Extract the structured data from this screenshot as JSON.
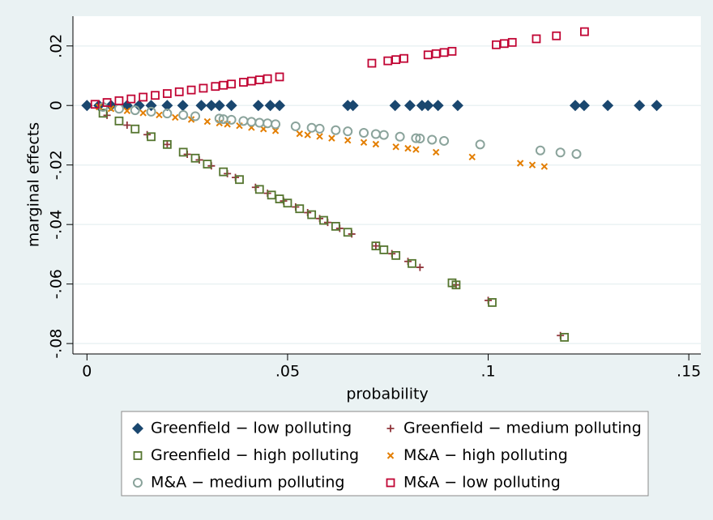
{
  "chart_data": {
    "type": "scatter",
    "xlabel": "probability",
    "ylabel": "marginal effects",
    "xlim": [
      -0.0035,
      0.153
    ],
    "ylim": [
      -0.0835,
      0.03
    ],
    "xticks": [
      0,
      {
        "value": 0.05,
        "label": ".05"
      },
      {
        "value": 0.1,
        "label": ".1"
      },
      {
        "value": 0.15,
        "label": ".15"
      }
    ],
    "yticks": [
      {
        "value": 0.02,
        "label": ".02"
      },
      0,
      {
        "value": -0.02,
        "label": "-.02"
      },
      {
        "value": -0.04,
        "label": "-.04"
      },
      {
        "value": -0.06,
        "label": "-.06"
      },
      {
        "value": -0.08,
        "label": "-.08"
      }
    ],
    "grid": true,
    "series": [
      {
        "name": "Greenfield − low polluting",
        "color": "#1a476f",
        "marker": "diamond",
        "x": [
          0,
          0.003,
          0.006,
          0.01,
          0.013,
          0.016,
          0.02,
          0.0239,
          0.0285,
          0.031,
          0.033,
          0.036,
          0.0427,
          0.0457,
          0.048,
          0.065,
          0.0663,
          0.0768,
          0.0805,
          0.0835,
          0.085,
          0.0875,
          0.0924,
          0.1217,
          0.1239,
          0.1298,
          0.1377,
          0.142
        ],
        "y": [
          0,
          0,
          0,
          0,
          0,
          0,
          0,
          0,
          0,
          0,
          0,
          0,
          0,
          0,
          0,
          0,
          0,
          0,
          0,
          0,
          0,
          0,
          0,
          0,
          0,
          0,
          0,
          0
        ]
      },
      {
        "name": "Greenfield − medium polluting",
        "color": "#90353b",
        "marker": "plus",
        "x": [
          0.005,
          0.01,
          0.015,
          0.02,
          0.025,
          0.028,
          0.031,
          0.035,
          0.037,
          0.042,
          0.045,
          0.049,
          0.052,
          0.055,
          0.058,
          0.06,
          0.063,
          0.066,
          0.072,
          0.076,
          0.08,
          0.083,
          0.092,
          0.1,
          0.118
        ],
        "y": [
          -0.0033,
          -0.0066,
          -0.0098,
          -0.0131,
          -0.0164,
          -0.0183,
          -0.0203,
          -0.0229,
          -0.0242,
          -0.0275,
          -0.0295,
          -0.0321,
          -0.0341,
          -0.036,
          -0.038,
          -0.0393,
          -0.0413,
          -0.0432,
          -0.0472,
          -0.0498,
          -0.0524,
          -0.0544,
          -0.0603,
          -0.0655,
          -0.0773
        ]
      },
      {
        "name": "Greenfield − high polluting",
        "color": "#55752f",
        "marker": "square",
        "x": [
          0.004,
          0.008,
          0.012,
          0.016,
          0.02,
          0.024,
          0.027,
          0.03,
          0.034,
          0.038,
          0.043,
          0.046,
          0.048,
          0.05,
          0.053,
          0.056,
          0.059,
          0.062,
          0.065,
          0.072,
          0.074,
          0.077,
          0.081,
          0.091,
          0.092,
          0.101,
          0.119
        ],
        "y": [
          -0.0026,
          -0.0052,
          -0.0079,
          -0.0105,
          -0.0131,
          -0.0157,
          -0.0177,
          -0.0197,
          -0.0223,
          -0.0249,
          -0.0282,
          -0.0301,
          -0.0314,
          -0.0328,
          -0.0347,
          -0.0367,
          -0.0386,
          -0.0406,
          -0.0426,
          -0.0472,
          -0.0485,
          -0.0504,
          -0.0531,
          -0.0596,
          -0.0603,
          -0.0662,
          -0.0779
        ]
      },
      {
        "name": "M&A − high polluting",
        "color": "#e37e00",
        "marker": "x",
        "x": [
          0.003,
          0.006,
          0.01,
          0.014,
          0.018,
          0.022,
          0.026,
          0.03,
          0.033,
          0.035,
          0.038,
          0.041,
          0.044,
          0.047,
          0.053,
          0.055,
          0.058,
          0.061,
          0.065,
          0.069,
          0.072,
          0.077,
          0.08,
          0.082,
          0.087,
          0.096,
          0.108,
          0.111,
          0.114
        ],
        "y": [
          -0.0005,
          -0.0011,
          -0.0018,
          -0.0025,
          -0.0032,
          -0.004,
          -0.0047,
          -0.0054,
          -0.0059,
          -0.0063,
          -0.0068,
          -0.0074,
          -0.0079,
          -0.0085,
          -0.0095,
          -0.0099,
          -0.0104,
          -0.011,
          -0.0117,
          -0.0124,
          -0.013,
          -0.0139,
          -0.0144,
          -0.0148,
          -0.0157,
          -0.0173,
          -0.0194,
          -0.02,
          -0.0205
        ]
      },
      {
        "name": "M&A − medium polluting",
        "color": "#8aa39b",
        "marker": "circle",
        "x": [
          0.004,
          0.008,
          0.012,
          0.016,
          0.02,
          0.024,
          0.027,
          0.033,
          0.034,
          0.036,
          0.039,
          0.041,
          0.043,
          0.045,
          0.047,
          0.052,
          0.056,
          0.058,
          0.062,
          0.065,
          0.069,
          0.072,
          0.074,
          0.078,
          0.082,
          0.083,
          0.086,
          0.089,
          0.098,
          0.113,
          0.118,
          0.122
        ],
        "y": [
          -0.0005,
          -0.0011,
          -0.0016,
          -0.0021,
          -0.0027,
          -0.0032,
          -0.0036,
          -0.0044,
          -0.0046,
          -0.0048,
          -0.0052,
          -0.0055,
          -0.0058,
          -0.006,
          -0.0063,
          -0.007,
          -0.0075,
          -0.0078,
          -0.0083,
          -0.0087,
          -0.0092,
          -0.0096,
          -0.0099,
          -0.0105,
          -0.011,
          -0.0111,
          -0.0115,
          -0.0119,
          -0.0131,
          -0.0151,
          -0.0158,
          -0.0163
        ]
      },
      {
        "name": "M&A − low polluting",
        "color": "#c10534",
        "marker": "square",
        "x": [
          0.002,
          0.005,
          0.008,
          0.011,
          0.014,
          0.017,
          0.02,
          0.023,
          0.026,
          0.029,
          0.032,
          0.034,
          0.036,
          0.039,
          0.041,
          0.043,
          0.045,
          0.048,
          0.071,
          0.075,
          0.077,
          0.079,
          0.085,
          0.087,
          0.089,
          0.091,
          0.102,
          0.104,
          0.106,
          0.112,
          0.117,
          0.124
        ],
        "y": [
          0.0004,
          0.001,
          0.0016,
          0.0022,
          0.0028,
          0.0034,
          0.004,
          0.0046,
          0.0052,
          0.0058,
          0.0064,
          0.0068,
          0.0072,
          0.0078,
          0.0082,
          0.0086,
          0.009,
          0.0096,
          0.0142,
          0.015,
          0.0154,
          0.0158,
          0.017,
          0.0174,
          0.0178,
          0.0182,
          0.0204,
          0.0208,
          0.0212,
          0.0224,
          0.0234,
          0.0248
        ]
      }
    ]
  }
}
